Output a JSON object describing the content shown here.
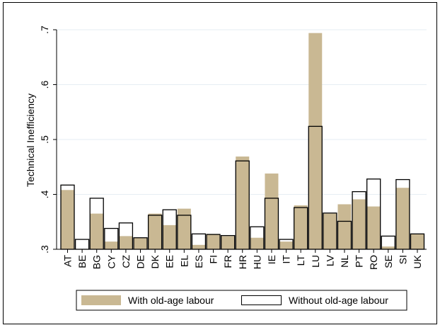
{
  "chart_data": {
    "type": "bar",
    "ylabel": "Technical Inefficiency",
    "xlabel": "",
    "ylim": [
      0.3,
      0.7
    ],
    "yticks": [
      0.3,
      0.4,
      0.5,
      0.6,
      0.7
    ],
    "ytick_labels": [
      ".3",
      ".4",
      ".5",
      ".6",
      ".7"
    ],
    "grid": true,
    "legend_position": "bottom",
    "categories": [
      "AT",
      "BE",
      "BG",
      "CY",
      "CZ",
      "DE",
      "DK",
      "EE",
      "EL",
      "ES",
      "FI",
      "FR",
      "HR",
      "HU",
      "IE",
      "IT",
      "LT",
      "LU",
      "LV",
      "NL",
      "PT",
      "RO",
      "SE",
      "SI",
      "UK"
    ],
    "series": [
      {
        "name": "With old-age labour",
        "color": "#c9b893",
        "style": "filled",
        "values": [
          0.408,
          0.3,
          0.365,
          0.314,
          0.324,
          0.321,
          0.365,
          0.344,
          0.374,
          0.308,
          0.328,
          0.324,
          0.469,
          0.321,
          0.438,
          0.314,
          0.38,
          0.694,
          0.365,
          0.382,
          0.391,
          0.378,
          0.305,
          0.412,
          0.328
        ]
      },
      {
        "name": "Without old-age labour",
        "color": "#000000",
        "style": "outline",
        "values": [
          0.417,
          0.318,
          0.393,
          0.338,
          0.348,
          0.321,
          0.362,
          0.372,
          0.362,
          0.328,
          0.327,
          0.325,
          0.461,
          0.341,
          0.393,
          0.318,
          0.376,
          0.524,
          0.366,
          0.351,
          0.405,
          0.428,
          0.324,
          0.427,
          0.328
        ]
      }
    ]
  }
}
